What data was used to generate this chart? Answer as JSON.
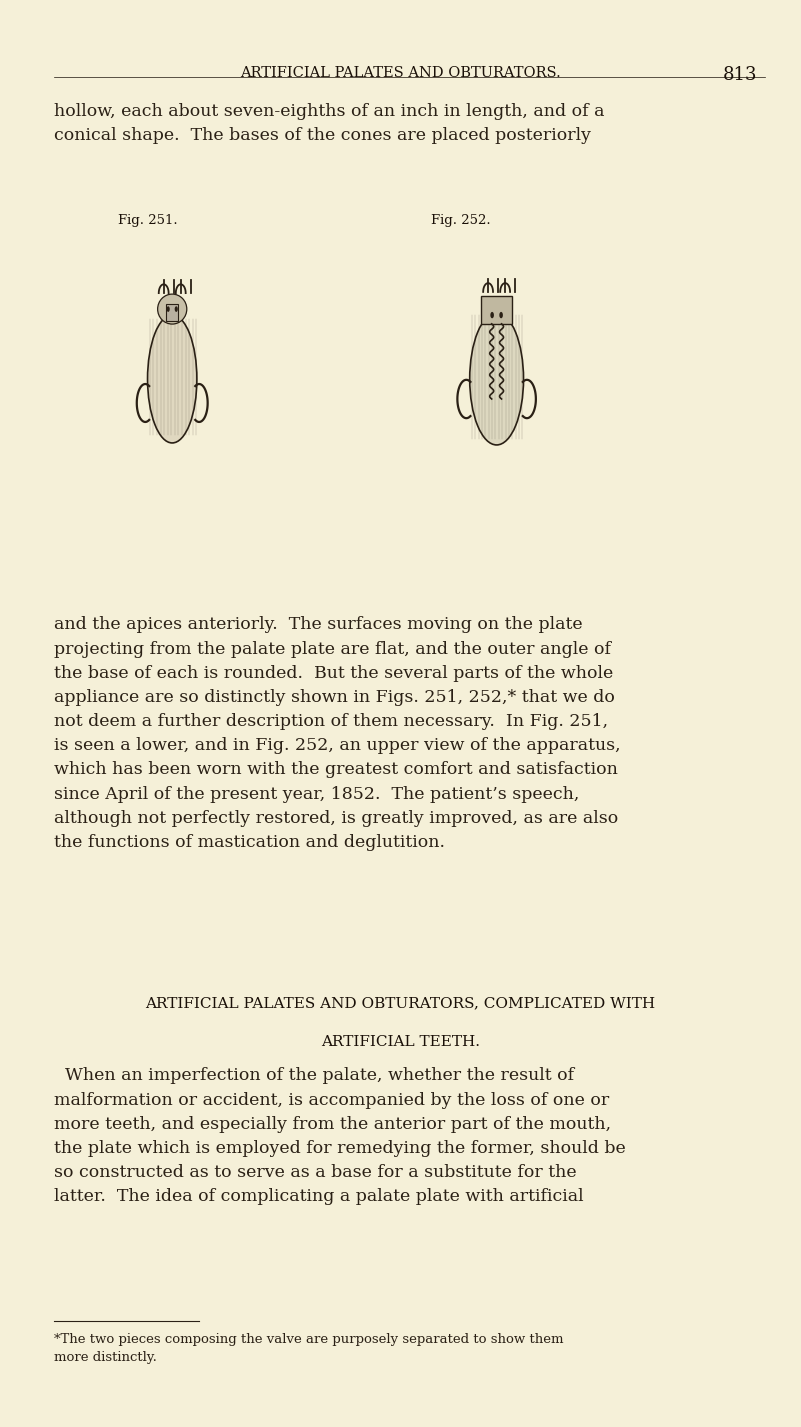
{
  "bg_color": "#f5f0d8",
  "header_text": "ARTIFICIAL PALATES AND OBTURATORS.",
  "page_number": "813",
  "header_fontsize": 10.5,
  "body_text_color": "#2a2015",
  "header_color": "#1a1008",
  "para1": "hollow, each about seven-eighths of an inch in length, and of a\nconical shape.  The bases of the cones are placed posteriorly",
  "fig_label_left": "Fig. 251.",
  "fig_label_right": "Fig. 252.",
  "para2": "and the apices anteriorly.  The surfaces moving on the plate\nprojecting from the palate plate are flat, and the outer angle of\nthe base of each is rounded.  But the several parts of the whole\nappliance are so distinctly shown in Figs. 251, 252,* that we do\nnot deem a further description of them necessary.  In Fig. 251,\nis seen a lower, and in Fig. 252, an upper view of the apparatus,\nwhich has been worn with the greatest comfort and satisfaction\nsince April of the present year, 1852.  The patient’s speech,\nalthough not perfectly restored, is greatly improved, as are also\nthe functions of mastication and deglutition.",
  "section_heading1": "ARTIFICIAL PALATES AND OBTURATORS, COMPLICATED WITH",
  "section_heading2": "ARTIFICIAL TEETH.",
  "para3": "  When an imperfection of the palate, whether the result of\nmalformation or accident, is accompanied by the loss of one or\nmore teeth, and especially from the anterior part of the mouth,\nthe plate which is employed for remedying the former, should be\nso constructed as to serve as a base for a substitute for the\nlatter.  The idea of complicating a palate plate with artificial",
  "footnote": "*The two pieces composing the valve are purposely separated to show them\nmore distinctly.",
  "body_fontsize": 12.5,
  "section_fontsize": 11.0,
  "footnote_fontsize": 9.5
}
